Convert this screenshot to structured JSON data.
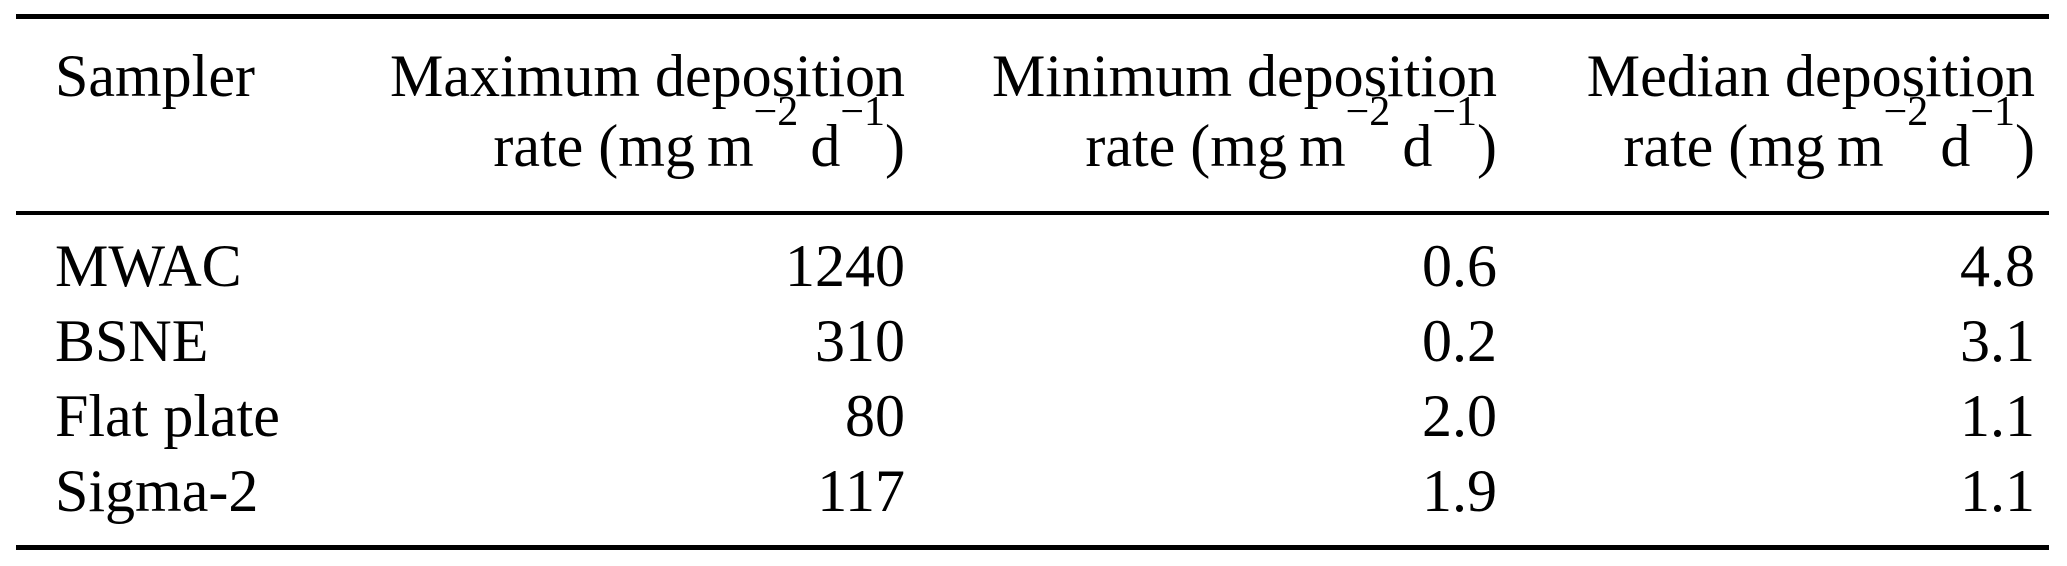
{
  "page": {
    "background": "#ffffff",
    "text_color": "#000000",
    "rule_color": "#000000"
  },
  "table": {
    "headers": [
      {
        "line1": "Sampler"
      },
      {
        "line1": "Maximum deposition"
      },
      {
        "line1": "Minimum deposition"
      },
      {
        "line1": "Median deposition"
      }
    ],
    "unit": {
      "pre": "rate (mg m",
      "sup_exp2": "−2",
      "mid": " d",
      "sup_exp1": "−1",
      "post": ")"
    },
    "rows": [
      {
        "sampler": "MWAC",
        "max": "1240",
        "min": "0.6",
        "median": "4.8"
      },
      {
        "sampler": "BSNE",
        "max": "310",
        "min": "0.2",
        "median": "3.1"
      },
      {
        "sampler": "Flat plate",
        "max": "80",
        "min": "2.0",
        "median": "1.1"
      },
      {
        "sampler": "Sigma-2",
        "max": "117",
        "min": "1.9",
        "median": "1.1"
      }
    ]
  },
  "chart_data": {
    "type": "table",
    "columns": [
      "Sampler",
      "Maximum deposition rate (mg m−2 d−1)",
      "Minimum deposition rate (mg m−2 d−1)",
      "Median deposition rate (mg m−2 d−1)"
    ],
    "rows": [
      [
        "MWAC",
        1240,
        0.6,
        4.8
      ],
      [
        "BSNE",
        310,
        0.2,
        3.1
      ],
      [
        "Flat plate",
        80,
        2.0,
        1.1
      ],
      [
        "Sigma-2",
        117,
        1.9,
        1.1
      ]
    ]
  }
}
